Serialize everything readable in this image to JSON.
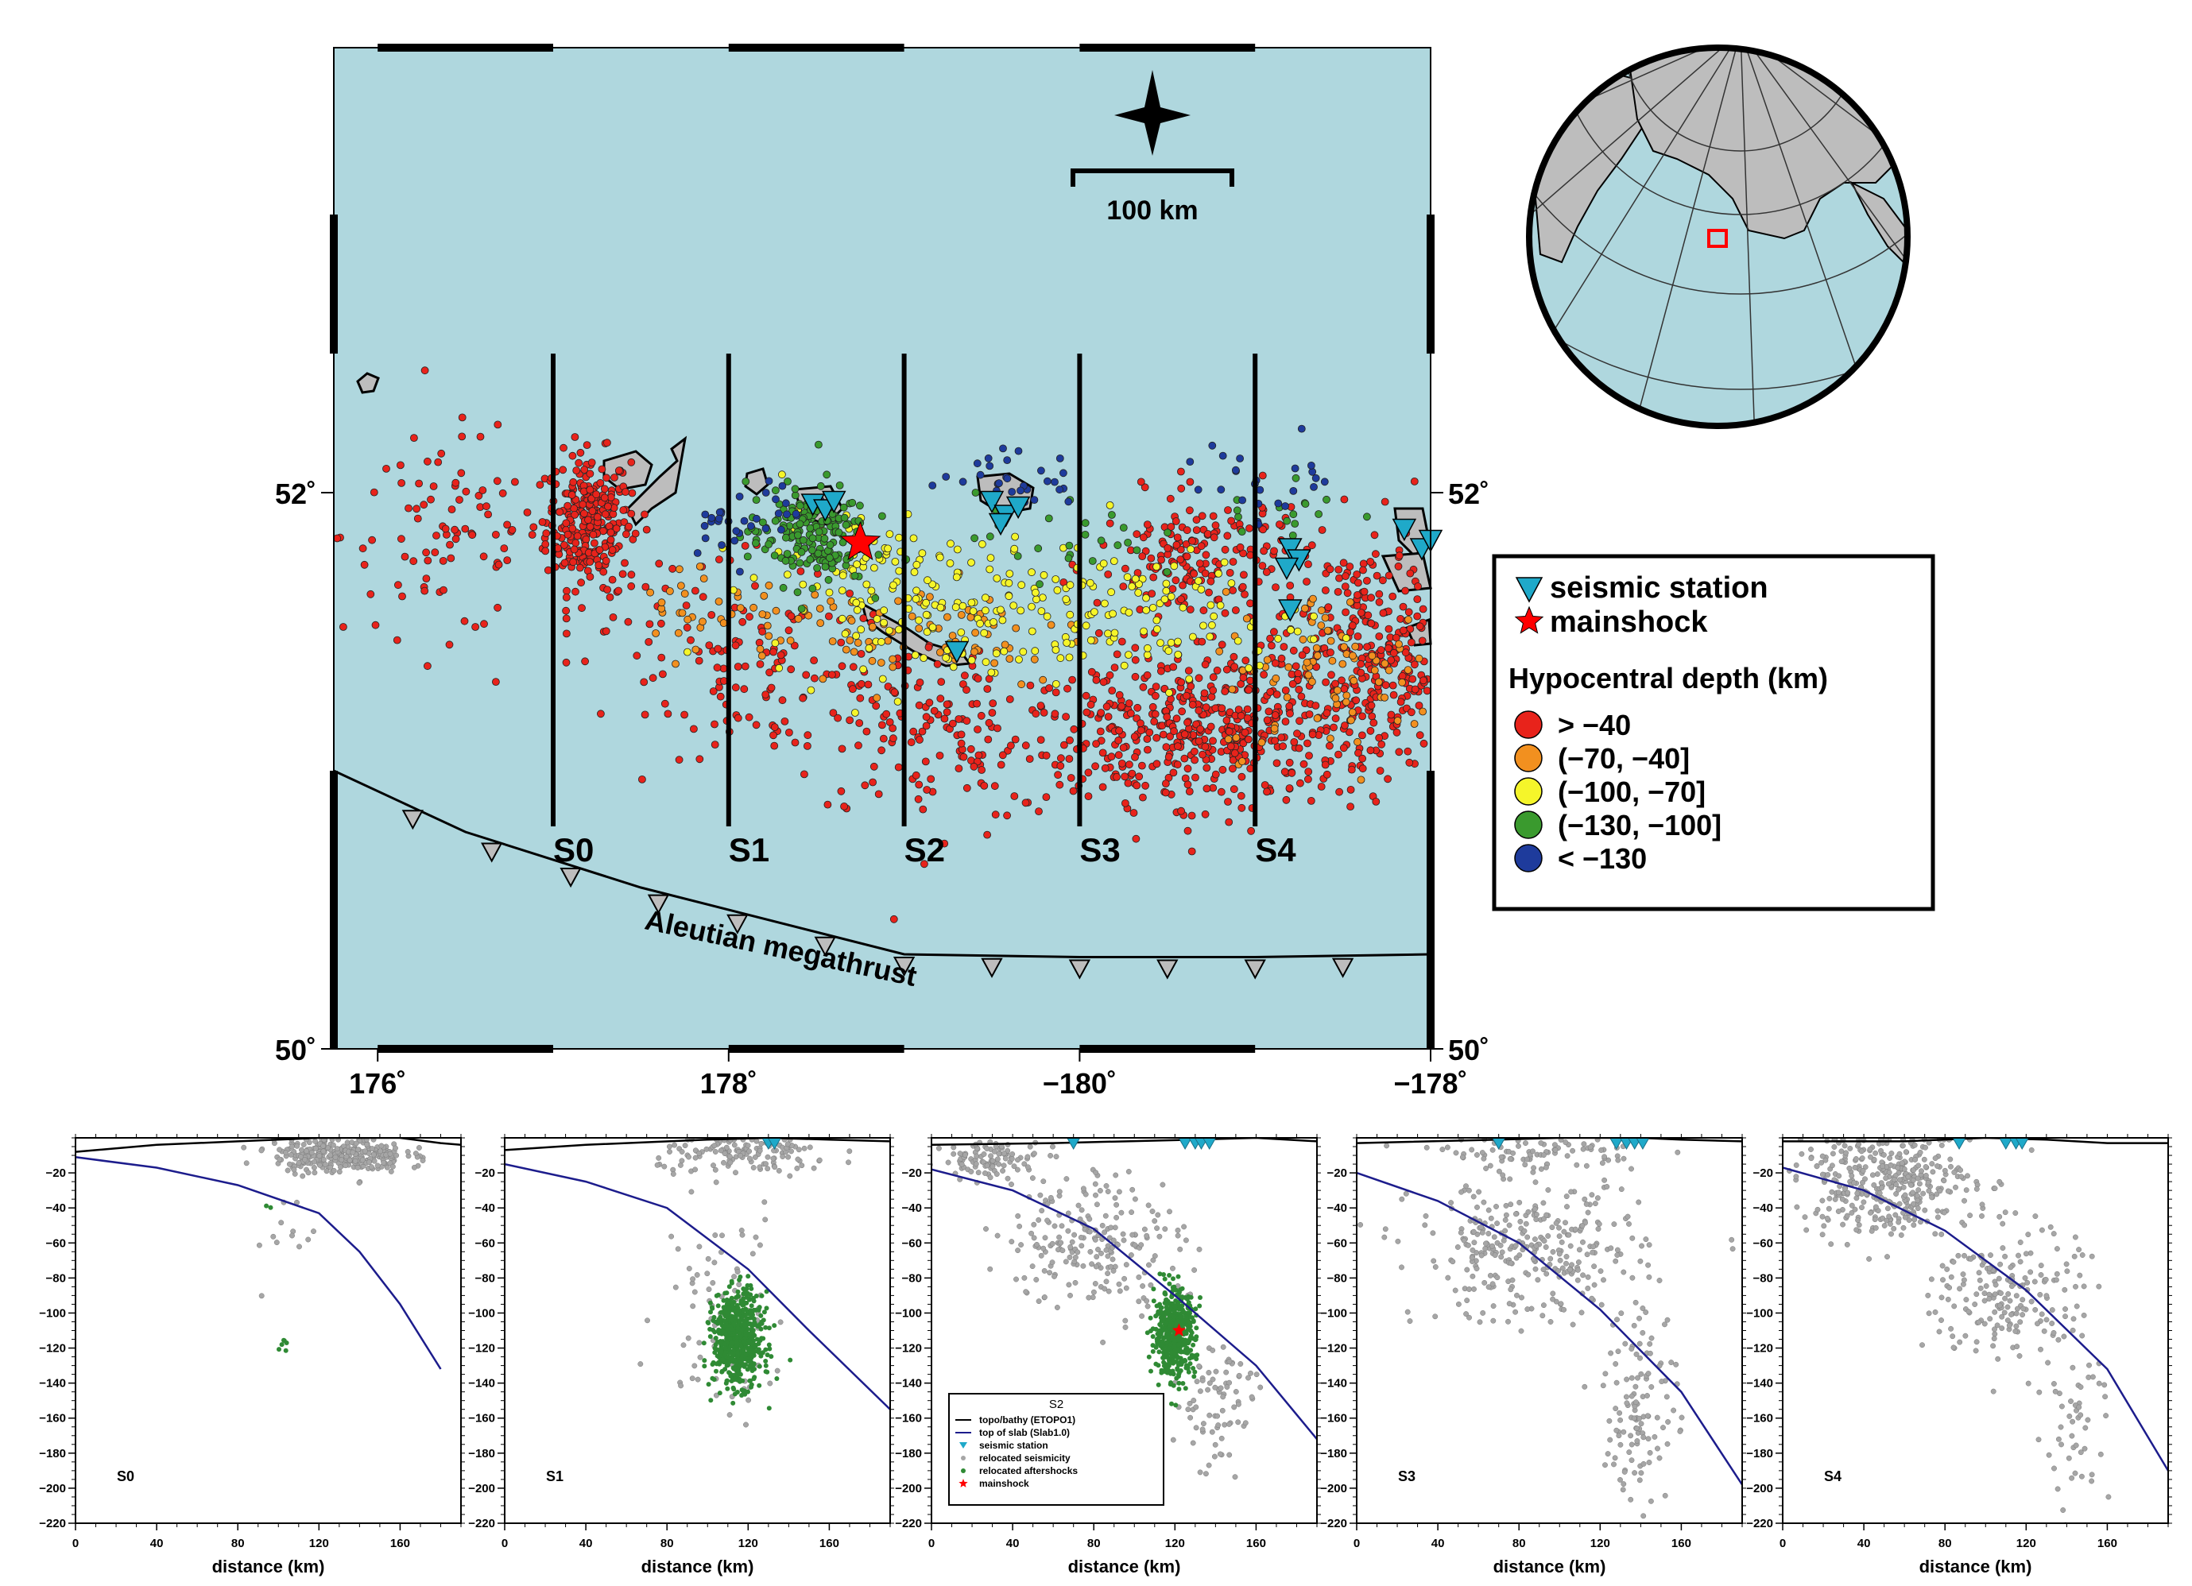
{
  "map": {
    "lat_min": 50.0,
    "lat_max": 53.6,
    "lon_min": 175.75,
    "lon_max": 182.0,
    "lat_ticks": [
      {
        "value": 52,
        "label": "52˚"
      },
      {
        "value": 50,
        "label": "50˚"
      }
    ],
    "lon_ticks": [
      {
        "value": 176,
        "label": "176˚"
      },
      {
        "value": 178,
        "label": "178˚"
      },
      {
        "value": 180,
        "label": "−180˚"
      },
      {
        "value": 182,
        "label": "−178˚"
      }
    ],
    "scale_bar_label": "100 km",
    "trench_label": "Aleutian megathrust",
    "section_lines": [
      {
        "lon": 177,
        "lat_top": 52.5,
        "lat_bottom": 50.8,
        "label": "S0"
      },
      {
        "lon": 178,
        "lat_top": 52.5,
        "lat_bottom": 50.8,
        "label": "S1"
      },
      {
        "lon": 179,
        "lat_top": 52.5,
        "lat_bottom": 50.8,
        "label": "S2"
      },
      {
        "lon": 180,
        "lat_top": 52.5,
        "lat_bottom": 50.8,
        "label": "S3"
      },
      {
        "lon": 181,
        "lat_top": 52.5,
        "lat_bottom": 50.8,
        "label": "S4"
      }
    ],
    "trench": [
      [
        175.75,
        51.0
      ],
      [
        176.5,
        50.78
      ],
      [
        177.5,
        50.58
      ],
      [
        178.5,
        50.42
      ],
      [
        179.0,
        50.34
      ],
      [
        180.0,
        50.33
      ],
      [
        181.0,
        50.33
      ],
      [
        182.0,
        50.34
      ]
    ],
    "trench_teeth_lons": [
      176.2,
      176.65,
      177.1,
      177.6,
      178.05,
      178.55,
      179.0,
      179.5,
      180.0,
      180.5,
      181.0,
      181.5,
      182.0
    ],
    "mainshock": {
      "lon": 178.75,
      "lat": 51.82
    },
    "stations": [
      [
        178.48,
        51.96
      ],
      [
        178.55,
        51.94
      ],
      [
        178.6,
        51.97
      ],
      [
        179.5,
        51.97
      ],
      [
        179.58,
        51.92
      ],
      [
        179.65,
        51.95
      ],
      [
        179.55,
        51.89
      ],
      [
        181.2,
        51.8
      ],
      [
        181.25,
        51.76
      ],
      [
        181.18,
        51.73
      ],
      [
        181.2,
        51.58
      ],
      [
        181.85,
        51.87
      ],
      [
        181.95,
        51.8
      ],
      [
        182.0,
        51.83
      ],
      [
        179.3,
        51.43
      ]
    ],
    "clusters": [
      {
        "class": 0,
        "n": 280,
        "lon": 177.2,
        "lat": 51.9,
        "slon": 0.12,
        "slat": 0.12
      },
      {
        "class": 0,
        "n": 90,
        "lon": 176.4,
        "lat": 51.85,
        "slon": 0.3,
        "slat": 0.18
      },
      {
        "class": 0,
        "n": 50,
        "lon": 177.6,
        "lat": 51.5,
        "slon": 0.35,
        "slat": 0.2
      },
      {
        "class": 0,
        "n": 90,
        "lon": 178.3,
        "lat": 51.35,
        "slon": 0.35,
        "slat": 0.15
      },
      {
        "class": 0,
        "n": 160,
        "lon": 179.2,
        "lat": 51.15,
        "slon": 0.45,
        "slat": 0.17
      },
      {
        "class": 0,
        "n": 110,
        "lon": 180.2,
        "lat": 51.1,
        "slon": 0.3,
        "slat": 0.13
      },
      {
        "class": 0,
        "n": 320,
        "lon": 180.8,
        "lat": 51.15,
        "slon": 0.35,
        "slat": 0.14
      },
      {
        "class": 0,
        "n": 180,
        "lon": 180.7,
        "lat": 51.75,
        "slon": 0.3,
        "slat": 0.12
      },
      {
        "class": 0,
        "n": 380,
        "lon": 181.65,
        "lat": 51.4,
        "slon": 0.3,
        "slat": 0.22
      },
      {
        "class": 1,
        "n": 80,
        "lon": 179.1,
        "lat": 51.5,
        "slon": 0.5,
        "slat": 0.1
      },
      {
        "class": 1,
        "n": 90,
        "lon": 181.5,
        "lat": 51.35,
        "slon": 0.35,
        "slat": 0.15
      },
      {
        "class": 1,
        "n": 40,
        "lon": 178.0,
        "lat": 51.6,
        "slon": 0.3,
        "slat": 0.1
      },
      {
        "class": 2,
        "n": 160,
        "lon": 179.3,
        "lat": 51.6,
        "slon": 0.55,
        "slat": 0.13
      },
      {
        "class": 2,
        "n": 80,
        "lon": 180.4,
        "lat": 51.55,
        "slon": 0.45,
        "slat": 0.12
      },
      {
        "class": 2,
        "n": 50,
        "lon": 178.7,
        "lat": 51.78,
        "slon": 0.2,
        "slat": 0.08
      },
      {
        "class": 3,
        "n": 180,
        "lon": 178.45,
        "lat": 51.85,
        "slon": 0.17,
        "slat": 0.09
      },
      {
        "class": 3,
        "n": 25,
        "lon": 179.9,
        "lat": 51.85,
        "slon": 0.25,
        "slat": 0.08
      },
      {
        "class": 3,
        "n": 15,
        "lon": 181.2,
        "lat": 51.95,
        "slon": 0.2,
        "slat": 0.08
      },
      {
        "class": 4,
        "n": 30,
        "lon": 179.6,
        "lat": 52.05,
        "slon": 0.2,
        "slat": 0.05
      },
      {
        "class": 4,
        "n": 25,
        "lon": 181.1,
        "lat": 52.05,
        "slon": 0.25,
        "slat": 0.08
      },
      {
        "class": 4,
        "n": 25,
        "lon": 178.05,
        "lat": 51.9,
        "slon": 0.15,
        "slat": 0.06
      },
      {
        "class": 4,
        "n": 8,
        "lon": 178.35,
        "lat": 51.97,
        "slon": 0.1,
        "slat": 0.04
      }
    ]
  },
  "legend": {
    "station_label": "seismic station",
    "mainshock_label": "mainshock",
    "depth_title": "Hypocentral depth (km)",
    "depth_classes": [
      {
        "label": "> −40",
        "color": "#e8231b"
      },
      {
        "label": "(−70, −40]",
        "color": "#f2901f"
      },
      {
        "label": "(−100, −70]",
        "color": "#f5f52a"
      },
      {
        "label": "(−130, −100]",
        "color": "#3a9a2e"
      },
      {
        "label": "< −130",
        "color": "#1e3b9c"
      }
    ]
  },
  "colors": {
    "ocean": "#afd7de",
    "land": "#bdbdbd",
    "slab": "#1c1c8c",
    "station": "#1fa9c9",
    "mainshock": "#ff0000",
    "seismicity": "#a6a6a6",
    "aftershock": "#2f8a34"
  },
  "chart_data": [
    {
      "type": "scatter",
      "name_label": "S0",
      "xlabel": "distance (km)",
      "xlim": [
        0,
        190
      ],
      "ylim": [
        -220,
        0
      ],
      "x_ticks": [
        0,
        40,
        80,
        120,
        160
      ],
      "y_ticks": [
        -20,
        -40,
        -60,
        -80,
        -100,
        -120,
        -140,
        -160,
        -180,
        -200,
        -220
      ],
      "topo": [
        [
          0,
          -8
        ],
        [
          40,
          -4
        ],
        [
          80,
          -2
        ],
        [
          100,
          -1
        ],
        [
          120,
          0
        ],
        [
          160,
          0
        ],
        [
          180,
          -3
        ],
        [
          190,
          -4
        ]
      ],
      "slab": [
        [
          0,
          -11
        ],
        [
          40,
          -17
        ],
        [
          80,
          -27
        ],
        [
          120,
          -43
        ],
        [
          140,
          -65
        ],
        [
          160,
          -95
        ],
        [
          180,
          -132
        ]
      ],
      "stations_x": [],
      "mainshock": null,
      "gray_clusters": [
        {
          "n": 300,
          "x": 130,
          "y": -10,
          "sx": 16,
          "sy": 5
        },
        {
          "n": 12,
          "x": 105,
          "y": -55,
          "sx": 10,
          "sy": 15
        }
      ],
      "green_clusters": [
        {
          "n": 6,
          "x": 103,
          "y": -116,
          "sx": 2,
          "sy": 2
        },
        {
          "n": 2,
          "x": 95,
          "y": -40,
          "sx": 1,
          "sy": 1
        }
      ]
    },
    {
      "type": "scatter",
      "name_label": "S1",
      "xlabel": "distance (km)",
      "xlim": [
        0,
        190
      ],
      "ylim": [
        -220,
        0
      ],
      "x_ticks": [
        0,
        40,
        80,
        120,
        160
      ],
      "y_ticks": [
        -20,
        -40,
        -60,
        -80,
        -100,
        -120,
        -140,
        -160,
        -180,
        -200,
        -220
      ],
      "topo": [
        [
          0,
          -7
        ],
        [
          40,
          -4
        ],
        [
          100,
          -1
        ],
        [
          130,
          0
        ],
        [
          160,
          -1
        ],
        [
          190,
          -2
        ]
      ],
      "slab": [
        [
          0,
          -15
        ],
        [
          40,
          -25
        ],
        [
          80,
          -40
        ],
        [
          120,
          -75
        ],
        [
          150,
          -110
        ],
        [
          190,
          -155
        ]
      ],
      "stations_x": [
        130,
        133
      ],
      "mainshock": null,
      "gray_clusters": [
        {
          "n": 140,
          "x": 120,
          "y": -10,
          "sx": 22,
          "sy": 6
        },
        {
          "n": 90,
          "x": 108,
          "y": -95,
          "sx": 15,
          "sy": 30
        }
      ],
      "green_clusters": [
        {
          "n": 650,
          "x": 115,
          "y": -115,
          "sx": 6,
          "sy": 13
        }
      ]
    },
    {
      "type": "scatter",
      "name_label": "S2",
      "xlabel": "distance (km)",
      "xlim": [
        0,
        190
      ],
      "ylim": [
        -220,
        0
      ],
      "x_ticks": [
        0,
        40,
        80,
        120,
        160
      ],
      "y_ticks": [
        -20,
        -40,
        -60,
        -80,
        -100,
        -120,
        -140,
        -160,
        -180,
        -200,
        -220
      ],
      "topo": [
        [
          0,
          -4
        ],
        [
          60,
          -3
        ],
        [
          130,
          -1
        ],
        [
          160,
          0
        ],
        [
          190,
          -2
        ]
      ],
      "slab": [
        [
          0,
          -18
        ],
        [
          40,
          -30
        ],
        [
          80,
          -52
        ],
        [
          120,
          -90
        ],
        [
          160,
          -130
        ],
        [
          190,
          -172
        ]
      ],
      "stations_x": [
        70,
        125,
        130,
        133,
        137
      ],
      "mainshock": [
        122,
        -110
      ],
      "gray_clusters": [
        {
          "n": 100,
          "x": 30,
          "y": -12,
          "sx": 12,
          "sy": 5
        },
        {
          "n": 220,
          "x": 80,
          "y": -58,
          "sx": 22,
          "sy": 20
        },
        {
          "n": 80,
          "x": 140,
          "y": -150,
          "sx": 10,
          "sy": 20
        }
      ],
      "green_clusters": [
        {
          "n": 520,
          "x": 120,
          "y": -112,
          "sx": 5,
          "sy": 12
        }
      ],
      "legend": {
        "title": "S2",
        "items": [
          "topo/bathy (ETOPO1)",
          "top of slab (Slab1.0)",
          "seismic station",
          "relocated seismicity",
          "relocated aftershocks",
          "mainshock"
        ]
      }
    },
    {
      "type": "scatter",
      "name_label": "S3",
      "xlabel": "distance (km)",
      "xlim": [
        0,
        190
      ],
      "ylim": [
        -220,
        0
      ],
      "x_ticks": [
        0,
        40,
        80,
        120,
        160
      ],
      "y_ticks": [
        -20,
        -40,
        -60,
        -80,
        -100,
        -120,
        -140,
        -160,
        -180,
        -200,
        -220
      ],
      "topo": [
        [
          0,
          -3
        ],
        [
          70,
          -1
        ],
        [
          100,
          0
        ],
        [
          140,
          0
        ],
        [
          160,
          -1
        ],
        [
          190,
          -2
        ]
      ],
      "slab": [
        [
          0,
          -20
        ],
        [
          40,
          -36
        ],
        [
          80,
          -60
        ],
        [
          120,
          -98
        ],
        [
          160,
          -145
        ],
        [
          190,
          -198
        ]
      ],
      "stations_x": [
        70,
        128,
        133,
        137,
        141
      ],
      "mainshock": null,
      "gray_clusters": [
        {
          "n": 80,
          "x": 90,
          "y": -8,
          "sx": 25,
          "sy": 4
        },
        {
          "n": 320,
          "x": 85,
          "y": -65,
          "sx": 28,
          "sy": 20
        },
        {
          "n": 120,
          "x": 140,
          "y": -150,
          "sx": 9,
          "sy": 30
        }
      ],
      "green_clusters": []
    },
    {
      "type": "scatter",
      "name_label": "S4",
      "xlabel": "distance (km)",
      "xlim": [
        0,
        190
      ],
      "ylim": [
        -220,
        0
      ],
      "x_ticks": [
        0,
        40,
        80,
        120,
        160
      ],
      "y_ticks": [
        -20,
        -40,
        -60,
        -80,
        -100,
        -120,
        -140,
        -160,
        -180,
        -200,
        -220
      ],
      "topo": [
        [
          0,
          -2
        ],
        [
          60,
          -2
        ],
        [
          100,
          0
        ],
        [
          130,
          -1
        ],
        [
          160,
          -3
        ],
        [
          190,
          -3
        ]
      ],
      "slab": [
        [
          0,
          -17
        ],
        [
          40,
          -30
        ],
        [
          80,
          -53
        ],
        [
          120,
          -87
        ],
        [
          160,
          -132
        ],
        [
          190,
          -190
        ]
      ],
      "stations_x": [
        87,
        110,
        115,
        118
      ],
      "mainshock": null,
      "gray_clusters": [
        {
          "n": 400,
          "x": 50,
          "y": -25,
          "sx": 22,
          "sy": 15
        },
        {
          "n": 200,
          "x": 110,
          "y": -90,
          "sx": 18,
          "sy": 20
        },
        {
          "n": 50,
          "x": 145,
          "y": -160,
          "sx": 8,
          "sy": 25
        }
      ],
      "green_clusters": []
    }
  ]
}
